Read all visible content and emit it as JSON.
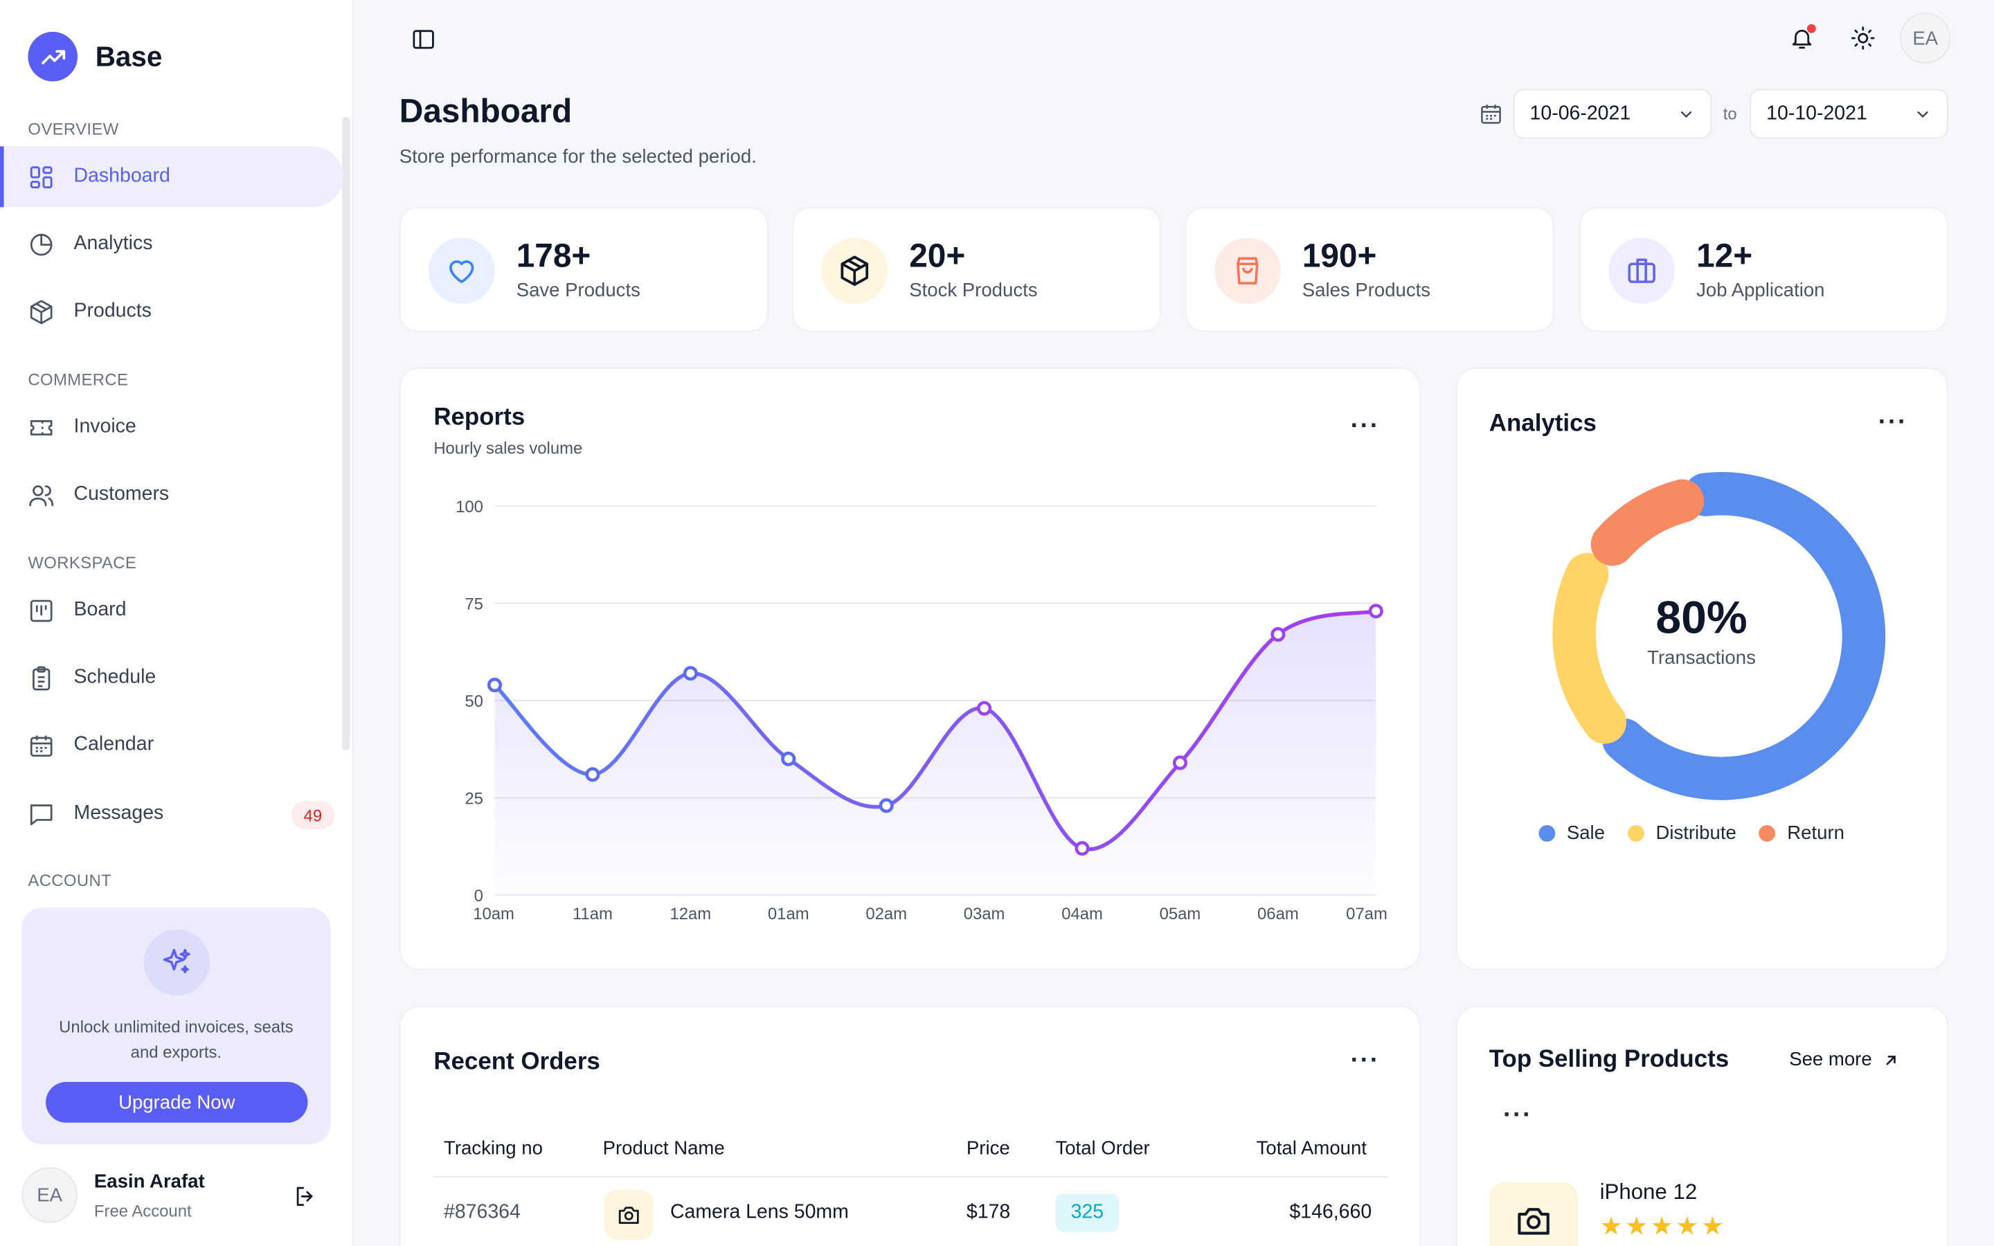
{
  "brand": {
    "name": "Base"
  },
  "sidebar": {
    "sections": [
      "OVERVIEW",
      "COMMERCE",
      "WORKSPACE",
      "ACCOUNT"
    ],
    "items": [
      {
        "label": "Dashboard",
        "icon": "grid-icon",
        "active": true
      },
      {
        "label": "Analytics",
        "icon": "pie-chart-icon"
      },
      {
        "label": "Products",
        "icon": "box-icon"
      },
      {
        "label": "Invoice",
        "icon": "ticket-icon"
      },
      {
        "label": "Customers",
        "icon": "users-icon"
      },
      {
        "label": "Board",
        "icon": "kanban-icon"
      },
      {
        "label": "Schedule",
        "icon": "clipboard-icon"
      },
      {
        "label": "Calendar",
        "icon": "calendar-icon"
      },
      {
        "label": "Messages",
        "icon": "message-icon",
        "badge": "49"
      }
    ],
    "upgrade": {
      "text": "Unlock unlimited invoices, seats and exports.",
      "button": "Upgrade Now"
    },
    "user": {
      "initials": "EA",
      "name": "Easin Arafat",
      "plan": "Free Account"
    }
  },
  "topbar": {
    "avatar_initials": "EA"
  },
  "header": {
    "title": "Dashboard",
    "subtitle": "Store performance for the selected period.",
    "date_from": "10-06-2021",
    "date_to": "10-10-2021",
    "to_label": "to"
  },
  "stats": [
    {
      "value": "178+",
      "label": "Save Products",
      "icon": "heart-icon",
      "color": "#3b82f6",
      "bg": "#e8f0fe"
    },
    {
      "value": "20+",
      "label": "Stock Products",
      "icon": "box-icon",
      "color": "#111827",
      "bg": "#fff5de"
    },
    {
      "value": "190+",
      "label": "Sales Products",
      "icon": "shopping-bag-icon",
      "color": "#f97356",
      "bg": "#fdebe6"
    },
    {
      "value": "12+",
      "label": "Job Application",
      "icon": "briefcase-icon",
      "color": "#6366f1",
      "bg": "#eeeefe"
    }
  ],
  "reports": {
    "title": "Reports",
    "subtitle": "Hourly sales volume"
  },
  "chart_data": {
    "type": "area",
    "title": "Reports",
    "subtitle": "Hourly sales volume",
    "categories": [
      "10am",
      "11am",
      "12am",
      "01am",
      "02am",
      "03am",
      "04am",
      "05am",
      "06am",
      "07am"
    ],
    "values": [
      54,
      31,
      57,
      35,
      23,
      48,
      12,
      34,
      67,
      73
    ],
    "ylim": [
      0,
      100
    ],
    "yticks": [
      0,
      25,
      50,
      75,
      100
    ],
    "grid": true,
    "colors": {
      "start": "#5b7cf6",
      "end": "#a43cf0"
    }
  },
  "analytics": {
    "title": "Analytics",
    "center_value": "80%",
    "center_label": "Transactions",
    "legend": [
      {
        "label": "Sale",
        "color": "#5b8def"
      },
      {
        "label": "Distribute",
        "color": "#ffd466"
      },
      {
        "label": "Return",
        "color": "#f88a62"
      }
    ]
  },
  "orders": {
    "title": "Recent Orders",
    "columns": [
      "Tracking no",
      "Product Name",
      "Price",
      "Total Order",
      "Total Amount"
    ],
    "rows": [
      {
        "tracking": "#876364",
        "product": "Camera Lens 50mm",
        "price": "$178",
        "total_order": "325",
        "amount": "$146,660"
      }
    ]
  },
  "top_selling": {
    "title": "Top Selling Products",
    "see_more": "See more",
    "product": {
      "name": "iPhone 12",
      "rating": 5
    }
  }
}
